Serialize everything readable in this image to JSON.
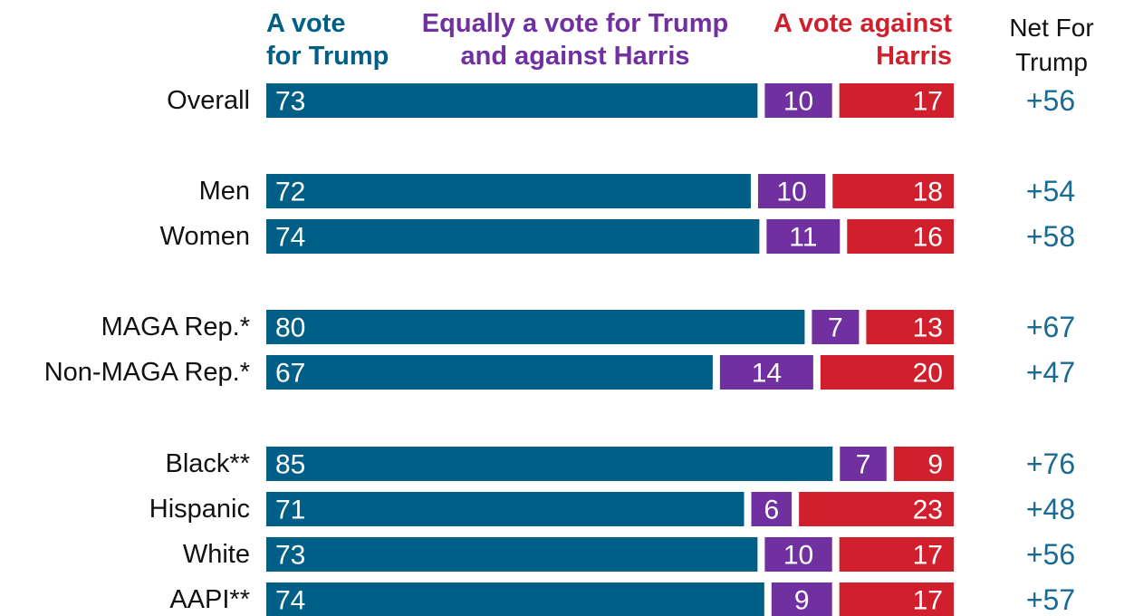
{
  "headers": {
    "for_trump": "A vote\nfor Trump",
    "equally": "Equally a vote for Trump\nand against Harris",
    "against_harris": "A vote against\nHarris",
    "net": "Net For\nTrump"
  },
  "colors": {
    "for_trump": "#005f87",
    "equally": "#7030a0",
    "against_harris": "#d0202e",
    "net_text": "#1a6a96",
    "label_text": "#111111"
  },
  "chart_data": {
    "type": "bar",
    "orientation": "horizontal",
    "stacked": true,
    "categories": [
      "Overall",
      "Men",
      "Women",
      "MAGA Rep.*",
      "Non-MAGA Rep.*",
      "Black**",
      "Hispanic",
      "White",
      "AAPI**"
    ],
    "groups": [
      [
        "Overall"
      ],
      [
        "Men",
        "Women"
      ],
      [
        "MAGA Rep.*",
        "Non-MAGA Rep.*"
      ],
      [
        "Black**",
        "Hispanic",
        "White",
        "AAPI**"
      ]
    ],
    "series": [
      {
        "name": "A vote for Trump",
        "values": [
          73,
          72,
          74,
          80,
          67,
          85,
          71,
          73,
          74
        ]
      },
      {
        "name": "Equally a vote for Trump and against Harris",
        "values": [
          10,
          10,
          11,
          7,
          14,
          7,
          6,
          10,
          9
        ]
      },
      {
        "name": "A vote against Harris",
        "values": [
          17,
          18,
          16,
          13,
          20,
          9,
          23,
          17,
          17
        ]
      }
    ],
    "net_label": "Net For Trump",
    "net": [
      "+56",
      "+54",
      "+58",
      "+67",
      "+47",
      "+76",
      "+48",
      "+56",
      "+57"
    ],
    "xlim": [
      0,
      100
    ],
    "legend": "top",
    "grid": false
  }
}
